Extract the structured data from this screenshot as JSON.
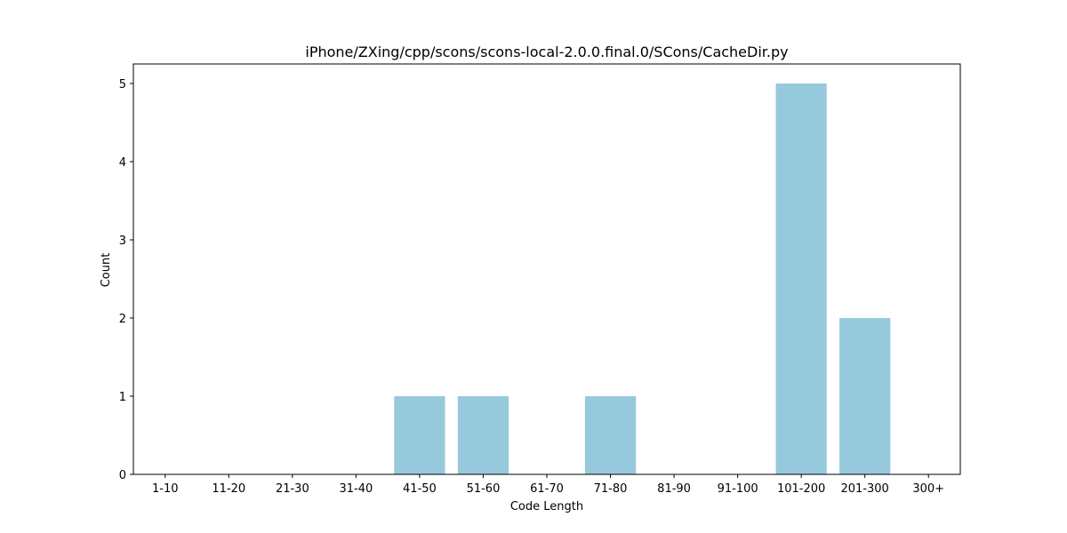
{
  "chart_data": {
    "type": "bar",
    "title": "iPhone/ZXing/cpp/scons/scons-local-2.0.0.final.0/SCons/CacheDir.py",
    "xlabel": "Code Length",
    "ylabel": "Count",
    "categories": [
      "1-10",
      "11-20",
      "21-30",
      "31-40",
      "41-50",
      "51-60",
      "61-70",
      "71-80",
      "81-90",
      "91-100",
      "101-200",
      "201-300",
      "300+"
    ],
    "values": [
      0,
      0,
      0,
      0,
      1,
      1,
      0,
      1,
      0,
      0,
      5,
      2,
      0
    ],
    "ylim": [
      0,
      5.25
    ],
    "yticks": [
      0,
      1,
      2,
      3,
      4,
      5
    ],
    "grid": false,
    "bar_color": "#96c9dc"
  }
}
